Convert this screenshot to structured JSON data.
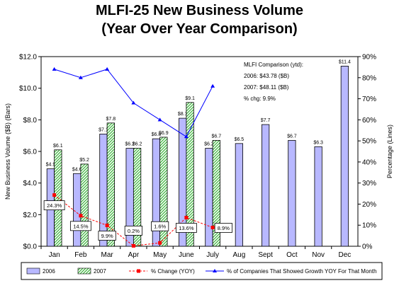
{
  "chart_data": {
    "type": "bar",
    "title": "MLFI-25 New Business Volume",
    "subtitle": "(Year Over Year Comparison)",
    "categories": [
      "Jan",
      "Feb",
      "Mar",
      "Apr",
      "May",
      "June",
      "July",
      "Aug",
      "Sept",
      "Oct",
      "Nov",
      "Dec"
    ],
    "ylabel_left": "New Business Volume ($B) (Bars)",
    "ylabel_right": "Percentage (Lines)",
    "left_ticks": [
      "$0.0",
      "$2.0",
      "$4.0",
      "$6.0",
      "$8.0",
      "$10.0",
      "$12.0"
    ],
    "right_ticks": [
      "0%",
      "10%",
      "20%",
      "30%",
      "40%",
      "50%",
      "60%",
      "70%",
      "80%",
      "90%"
    ],
    "ylim_left": [
      0,
      12
    ],
    "ylim_right": [
      0,
      90
    ],
    "grid": false,
    "legend_position": "bottom",
    "series": [
      {
        "name": "2006",
        "kind": "bar",
        "axis": "left",
        "color": "#b8b8ff",
        "values": [
          4.9,
          4.6,
          7.1,
          6.2,
          6.8,
          8.1,
          6.2,
          6.5,
          7.7,
          6.7,
          6.3,
          11.4
        ],
        "labels": [
          "$4.9",
          "$4.6",
          "$7.1",
          "$6.2",
          "$6.8",
          "$8.1",
          "$6.2",
          "$6.5",
          "$7.7",
          "$6.7",
          "$6.3",
          "$11.4"
        ]
      },
      {
        "name": "2007",
        "kind": "bar",
        "axis": "left",
        "color": "#9ee39e",
        "values": [
          6.1,
          5.2,
          7.8,
          6.2,
          6.9,
          9.1,
          6.7,
          null,
          null,
          null,
          null,
          null
        ],
        "labels": [
          "$6.1",
          "$5.2",
          "$7.8",
          "$6.2",
          "$6.9",
          "$9.1",
          "$6.7",
          null,
          null,
          null,
          null,
          null
        ]
      },
      {
        "name": "% Change (YOY)",
        "kind": "line",
        "axis": "right",
        "color": "#ff0000",
        "values": [
          24.3,
          14.5,
          9.9,
          0.2,
          1.6,
          13.6,
          8.9,
          null,
          null,
          null,
          null,
          null
        ],
        "labels": [
          "24.3%",
          "14.5%",
          "9.9%",
          "0.2%",
          "1.6%",
          "13.6%",
          "8.9%",
          null,
          null,
          null,
          null,
          null
        ]
      },
      {
        "name": "% of Companies That Showed Growth YOY For That Month",
        "kind": "line",
        "axis": "right",
        "color": "#0000ff",
        "values": [
          84,
          80,
          84,
          68,
          60,
          52,
          76,
          null,
          null,
          null,
          null,
          null
        ]
      }
    ],
    "annotation": {
      "lines": [
        "MLFI Comparison (ytd):",
        "2006: $43.78 ($B)",
        "2007: $48.11 ($B)",
        "% chg: 9.9%"
      ]
    }
  }
}
